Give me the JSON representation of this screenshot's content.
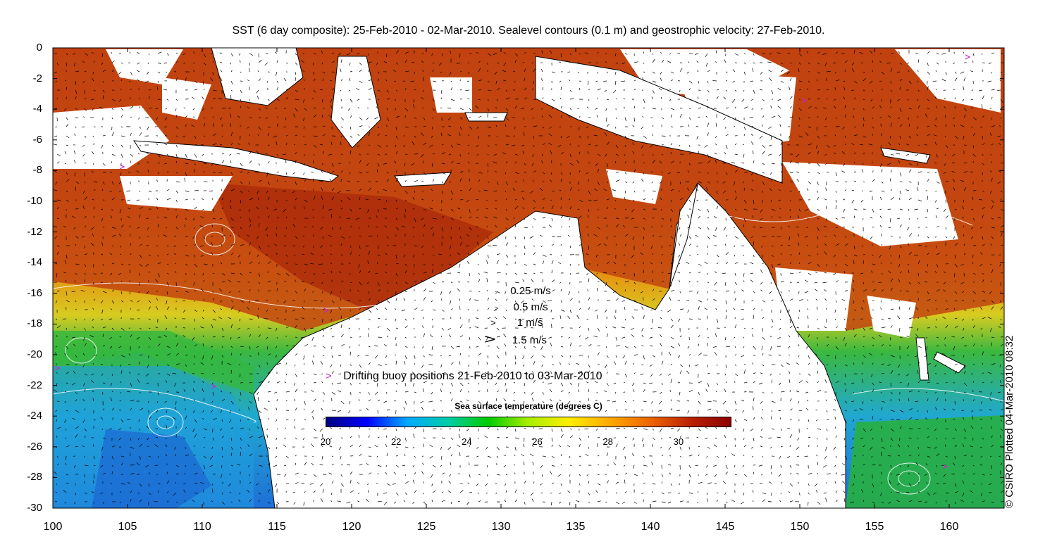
{
  "title": "SST (6 day composite): 25-Feb-2010 - 02-Mar-2010. Sealevel contours (0.1 m) and geostrophic velocity: 27-Feb-2010.",
  "x_ticks": [
    "100",
    "105",
    "110",
    "115",
    "120",
    "125",
    "130",
    "135",
    "140",
    "145",
    "150",
    "155",
    "160"
  ],
  "y_ticks": [
    "0",
    "-2",
    "-4",
    "-6",
    "-8",
    "-10",
    "-12",
    "-14",
    "-16",
    "-18",
    "-20",
    "-22",
    "-24",
    "-26",
    "-28",
    "-30"
  ],
  "velocity_legend": [
    {
      "label": "0.25 m/s",
      "speed": 0.25
    },
    {
      "label": "0.5 m/s",
      "speed": 0.5
    },
    {
      "label": "1 m/s",
      "speed": 1
    },
    {
      "label": "1.5 m/s",
      "speed": 1.5
    }
  ],
  "buoy_legend": {
    "symbol": ">",
    "label": "Drifting buoy positions 21-Feb-2010 to 03-Mar-2010",
    "color": "#cc22cc"
  },
  "colorbar": {
    "title": "Sea surface temperature (degrees C)",
    "min": 20,
    "max": 31.5,
    "ticks": [
      "20",
      "22",
      "24",
      "26",
      "28",
      "30"
    ],
    "stops": [
      "#00007f",
      "#0000ff",
      "#00aaff",
      "#00ccaa",
      "#00cc00",
      "#aaee00",
      "#ffee00",
      "#ffaa00",
      "#ee6600",
      "#bb2200",
      "#8b0000"
    ]
  },
  "credit": "© CSIRO Plotted 04-Mar-2010 08:32",
  "colors": {
    "land": "#ffffff",
    "cloud": "#ffffff",
    "warm": "#c0400a",
    "cool": "#19a8e0"
  }
}
